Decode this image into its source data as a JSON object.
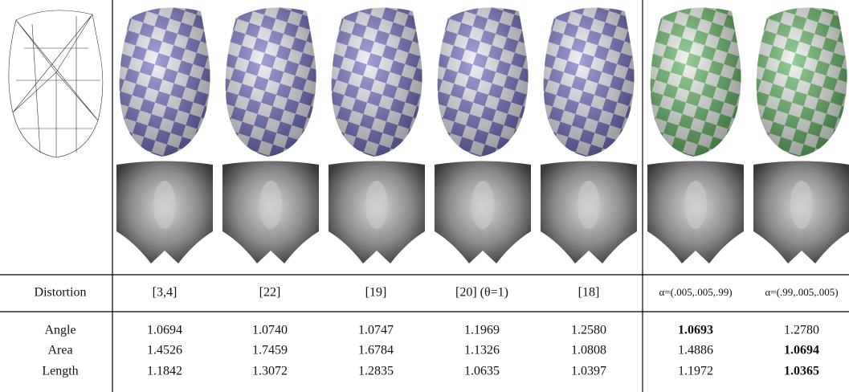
{
  "table": {
    "header": [
      "Distortion",
      "[3,4]",
      "[22]",
      "[19]",
      "[20] (θ=1)",
      "[18]",
      "α=(.005,.005,.99)",
      "α=(.99,.005,.005)"
    ],
    "rows": [
      [
        "Angle",
        "1.0694",
        "1.0740",
        "1.0747",
        "1.1969",
        "1.2580",
        "1.0693",
        "1.2780"
      ],
      [
        "Area",
        "1.4526",
        "1.7459",
        "1.6784",
        "1.1326",
        "1.0808",
        "1.4886",
        "1.0694"
      ],
      [
        "Length",
        "1.1842",
        "1.3072",
        "1.2835",
        "1.0635",
        "1.0397",
        "1.1972",
        "1.0365"
      ]
    ]
  }
}
